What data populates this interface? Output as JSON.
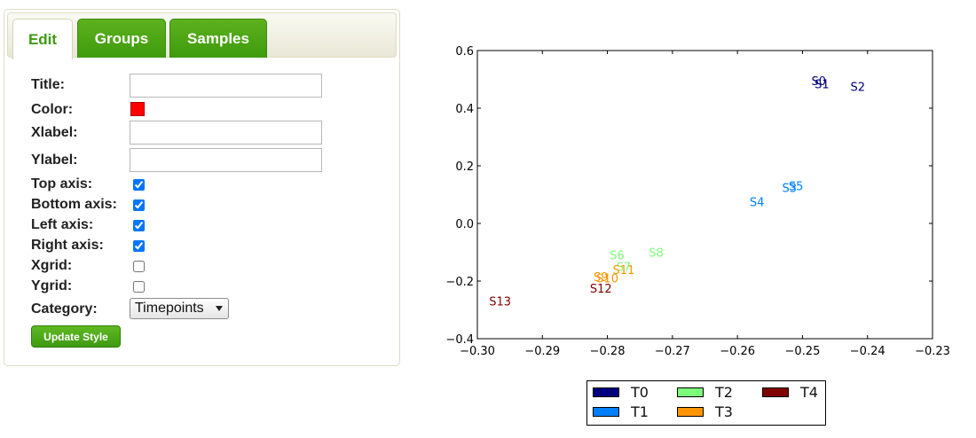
{
  "tabs": [
    {
      "label": "Edit",
      "active": true
    },
    {
      "label": "Groups",
      "active": false
    },
    {
      "label": "Samples",
      "active": false
    }
  ],
  "form": {
    "title_label": "Title:",
    "title_value": "",
    "color_label": "Color:",
    "color_value": "#ff0000",
    "xlabel_label": "Xlabel:",
    "xlabel_value": "",
    "ylabel_label": "Ylabel:",
    "ylabel_value": "",
    "top_axis_label": "Top axis:",
    "top_axis_checked": true,
    "bottom_axis_label": "Bottom axis:",
    "bottom_axis_checked": true,
    "left_axis_label": "Left axis:",
    "left_axis_checked": true,
    "right_axis_label": "Right axis:",
    "right_axis_checked": true,
    "xgrid_label": "Xgrid:",
    "xgrid_checked": false,
    "ygrid_label": "Ygrid:",
    "ygrid_checked": false,
    "category_label": "Category:",
    "category_value": "Timepoints",
    "update_button": "Update Style"
  },
  "chart_data": {
    "type": "scatter",
    "title": "",
    "xlabel": "",
    "ylabel": "",
    "xlim": [
      -0.3,
      -0.23
    ],
    "ylim": [
      -0.4,
      0.6
    ],
    "x_ticks": [
      "−0.30",
      "−0.29",
      "−0.28",
      "−0.27",
      "−0.26",
      "−0.25",
      "−0.24",
      "−0.23"
    ],
    "x_tick_values": [
      -0.3,
      -0.29,
      -0.28,
      -0.27,
      -0.26,
      -0.25,
      -0.24,
      -0.23
    ],
    "y_ticks": [
      "0.6",
      "0.4",
      "0.2",
      "0.0",
      "−0.2",
      "−0.4"
    ],
    "y_tick_values": [
      0.6,
      0.4,
      0.2,
      0.0,
      -0.2,
      -0.4
    ],
    "grid": false,
    "legend_position": "bottom-center",
    "series": [
      {
        "name": "T0",
        "color": "#00007f",
        "points": [
          {
            "label": "S0",
            "x": -0.2475,
            "y": 0.48
          },
          {
            "label": "S1",
            "x": -0.247,
            "y": 0.47
          },
          {
            "label": "S2",
            "x": -0.2415,
            "y": 0.46
          }
        ]
      },
      {
        "name": "T1",
        "color": "#0080ff",
        "points": [
          {
            "label": "S3",
            "x": -0.252,
            "y": 0.11
          },
          {
            "label": "S5",
            "x": -0.251,
            "y": 0.115
          },
          {
            "label": "S4",
            "x": -0.257,
            "y": 0.06
          }
        ]
      },
      {
        "name": "T2",
        "color": "#7cff79",
        "points": [
          {
            "label": "S6",
            "x": -0.2785,
            "y": -0.125
          },
          {
            "label": "S8",
            "x": -0.2725,
            "y": -0.115
          },
          {
            "label": "S7",
            "x": -0.2775,
            "y": -0.165
          }
        ]
      },
      {
        "name": "T3",
        "color": "#ff9400",
        "points": [
          {
            "label": "S11",
            "x": -0.2775,
            "y": -0.175
          },
          {
            "label": "S9",
            "x": -0.281,
            "y": -0.2
          },
          {
            "label": "S10",
            "x": -0.28,
            "y": -0.205
          }
        ]
      },
      {
        "name": "T4",
        "color": "#7f0000",
        "points": [
          {
            "label": "S12",
            "x": -0.281,
            "y": -0.24
          },
          {
            "label": "S13",
            "x": -0.2965,
            "y": -0.285
          }
        ]
      }
    ]
  }
}
